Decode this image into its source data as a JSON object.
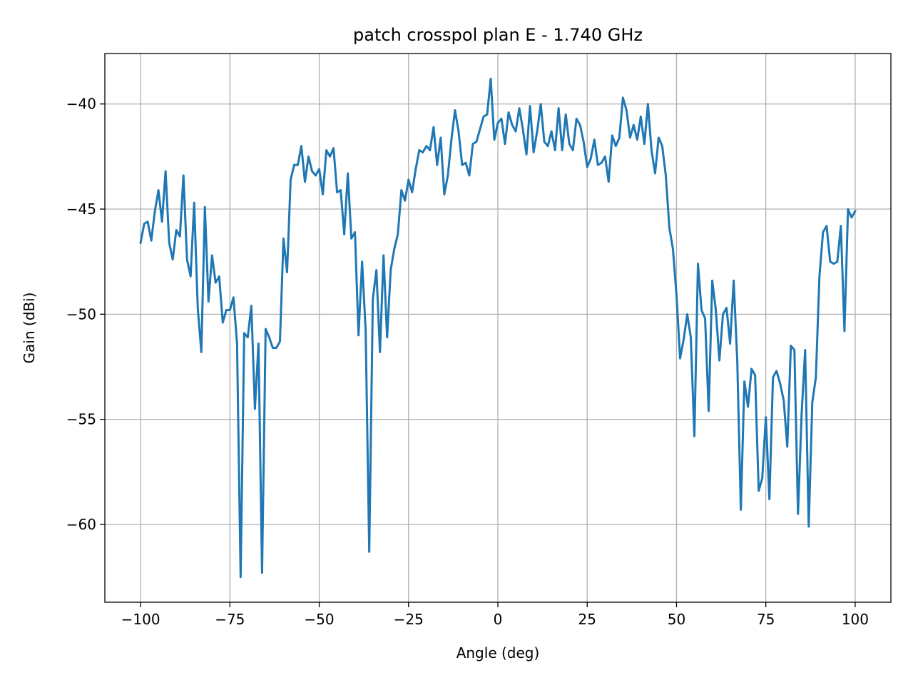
{
  "chart_data": {
    "type": "line",
    "title": "patch crosspol plan E - 1.740 GHz",
    "xlabel": "Angle (deg)",
    "ylabel": "Gain (dBi)",
    "xlim": [
      -110,
      110
    ],
    "ylim": [
      -63.7,
      -37.6
    ],
    "xticks": [
      -100,
      -75,
      -50,
      -25,
      0,
      25,
      50,
      75,
      100
    ],
    "xtick_labels": [
      "−100",
      "−75",
      "−50",
      "−25",
      "0",
      "25",
      "50",
      "75",
      "100"
    ],
    "yticks": [
      -60,
      -55,
      -50,
      -45,
      -40
    ],
    "ytick_labels": [
      "−60",
      "−55",
      "−50",
      "−45",
      "−40"
    ],
    "grid": true,
    "line_color": "#1f77b4",
    "grid_color": "#b0b0b0",
    "series": [
      {
        "x": [
          -100,
          -99,
          -98,
          -97,
          -96,
          -95,
          -94,
          -93,
          -92,
          -91,
          -90,
          -89,
          -88,
          -87,
          -86,
          -85,
          -84,
          -83,
          -82,
          -81,
          -80,
          -79,
          -78,
          -77,
          -76,
          -75,
          -74,
          -73,
          -72,
          -71,
          -70,
          -69,
          -68,
          -67,
          -66,
          -65,
          -64,
          -63,
          -62,
          -61,
          -60,
          -59,
          -58,
          -57,
          -56,
          -55,
          -54,
          -53,
          -52,
          -51,
          -50,
          -49,
          -48,
          -47,
          -46,
          -45,
          -44,
          -43,
          -42,
          -41,
          -40,
          -39,
          -38,
          -37,
          -36,
          -35,
          -34,
          -33,
          -32,
          -31,
          -30,
          -29,
          -28,
          -27,
          -26,
          -25,
          -24,
          -23,
          -22,
          -21,
          -20,
          -19,
          -18,
          -17,
          -16,
          -15,
          -14,
          -13,
          -12,
          -11,
          -10,
          -9,
          -8,
          -7,
          -6,
          -5,
          -4,
          -3,
          -2,
          -1,
          0,
          1,
          2,
          3,
          4,
          5,
          6,
          7,
          8,
          9,
          10,
          11,
          12,
          13,
          14,
          15,
          16,
          17,
          18,
          19,
          20,
          21,
          22,
          23,
          24,
          25,
          26,
          27,
          28,
          29,
          30,
          31,
          32,
          33,
          34,
          35,
          36,
          37,
          38,
          39,
          40,
          41,
          42,
          43,
          44,
          45,
          46,
          47,
          48,
          49,
          50,
          51,
          52,
          53,
          54,
          55,
          56,
          57,
          58,
          59,
          60,
          61,
          62,
          63,
          64,
          65,
          66,
          67,
          68,
          69,
          70,
          71,
          72,
          73,
          74,
          75,
          76,
          77,
          78,
          79,
          80,
          81,
          82,
          83,
          84,
          85,
          86,
          87,
          88,
          89,
          90,
          91,
          92,
          93,
          94,
          95,
          96,
          97,
          98,
          99,
          100
        ],
        "y": [
          -46.6,
          -45.7,
          -45.6,
          -46.5,
          -45.1,
          -44.1,
          -45.6,
          -43.2,
          -46.6,
          -47.4,
          -46.0,
          -46.3,
          -43.4,
          -47.4,
          -48.2,
          -44.7,
          -49.7,
          -51.8,
          -44.9,
          -49.4,
          -47.2,
          -48.5,
          -48.2,
          -50.4,
          -49.8,
          -49.8,
          -49.2,
          -51.4,
          -62.5,
          -50.9,
          -51.1,
          -49.6,
          -54.5,
          -51.4,
          -62.3,
          -50.7,
          -51.1,
          -51.6,
          -51.6,
          -51.3,
          -46.4,
          -48.0,
          -43.6,
          -42.9,
          -42.9,
          -42.0,
          -43.7,
          -42.5,
          -43.2,
          -43.4,
          -43.1,
          -44.3,
          -42.2,
          -42.5,
          -42.1,
          -44.2,
          -44.1,
          -46.2,
          -43.3,
          -46.4,
          -46.1,
          -51.0,
          -47.5,
          -50.8,
          -61.3,
          -49.3,
          -47.9,
          -51.8,
          -47.2,
          -51.1,
          -47.9,
          -46.9,
          -46.2,
          -44.1,
          -44.6,
          -43.6,
          -44.2,
          -43.1,
          -42.2,
          -42.3,
          -42.0,
          -42.2,
          -41.1,
          -42.9,
          -41.6,
          -44.3,
          -43.4,
          -41.7,
          -40.3,
          -41.3,
          -42.9,
          -42.8,
          -43.4,
          -41.9,
          -41.8,
          -41.2,
          -40.6,
          -40.5,
          -38.8,
          -41.7,
          -40.9,
          -40.7,
          -41.9,
          -40.4,
          -41.0,
          -41.3,
          -40.2,
          -41.2,
          -42.4,
          -40.1,
          -42.3,
          -41.3,
          -40.0,
          -41.8,
          -42.0,
          -41.3,
          -42.2,
          -40.2,
          -42.2,
          -40.5,
          -41.9,
          -42.2,
          -40.7,
          -41.0,
          -41.8,
          -43.0,
          -42.6,
          -41.7,
          -42.9,
          -42.8,
          -42.5,
          -43.7,
          -41.5,
          -42.0,
          -41.6,
          -39.7,
          -40.3,
          -41.6,
          -41.0,
          -41.7,
          -40.6,
          -41.9,
          -40.0,
          -42.2,
          -43.3,
          -41.6,
          -42.0,
          -43.4,
          -45.9,
          -46.9,
          -49.1,
          -52.1,
          -51.2,
          -50.0,
          -51.1,
          -55.8,
          -47.6,
          -49.8,
          -50.2,
          -54.6,
          -48.4,
          -49.8,
          -52.2,
          -50.0,
          -49.7,
          -51.4,
          -48.4,
          -52.2,
          -59.3,
          -53.2,
          -54.4,
          -52.6,
          -52.9,
          -58.4,
          -57.8,
          -54.9,
          -58.8,
          -53.0,
          -52.7,
          -53.3,
          -54.1,
          -56.3,
          -51.5,
          -51.7,
          -59.5,
          -54.8,
          -51.7,
          -60.1,
          -54.2,
          -53.0,
          -48.2,
          -46.1,
          -45.8,
          -47.5,
          -47.6,
          -47.5,
          -45.8,
          -50.8,
          -45.0,
          -45.4,
          -45.1
        ]
      }
    ]
  }
}
